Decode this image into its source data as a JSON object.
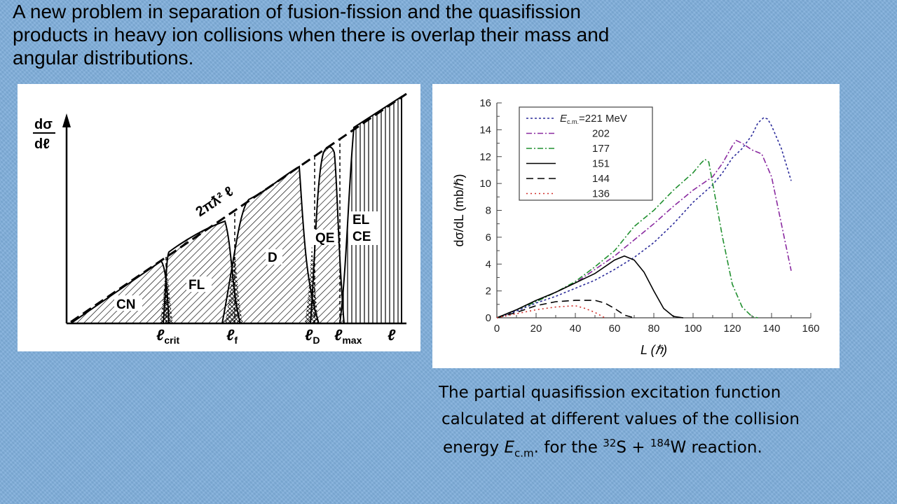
{
  "slide": {
    "title_lines": [
      "A new problem in separation of fusion-fission and the quasifission",
      "products in heavy ion collisions when there is overlap their mass and",
      "angular distributions."
    ]
  },
  "left_figure": {
    "y_label_top": "dσ",
    "y_label_bottom": "dℓ",
    "x_axis_symbol": "ℓ",
    "slope_label": "2πƛ² ℓ",
    "regions": [
      "CN",
      "FL",
      "D",
      "QE",
      "EL",
      "CE"
    ],
    "ticks": [
      {
        "main": "ℓ",
        "sub": "crit"
      },
      {
        "main": "ℓ",
        "sub": "f"
      },
      {
        "main": "ℓ",
        "sub": "D"
      },
      {
        "main": "ℓ",
        "sub": "max"
      }
    ]
  },
  "chart_data": {
    "type": "line",
    "title": "",
    "xlabel": "L (ℏ)",
    "ylabel": "dσ/dL (mb/ℏ)",
    "xlim": [
      0,
      160
    ],
    "ylim": [
      0,
      16
    ],
    "xticks": [
      0,
      20,
      40,
      60,
      80,
      100,
      120,
      140,
      160
    ],
    "yticks": [
      0,
      2,
      4,
      6,
      8,
      10,
      12,
      14,
      16
    ],
    "legend_position": "top-left",
    "legend_prefix_symbol": "E",
    "legend_prefix_sub": "c.m.",
    "series": [
      {
        "name": "=221 MeV",
        "color": "#2b2b9a",
        "dash": "3,3",
        "x": [
          0,
          10,
          20,
          30,
          40,
          50,
          60,
          70,
          80,
          90,
          100,
          110,
          115,
          120,
          125,
          130,
          133,
          136,
          138,
          140,
          145,
          150
        ],
        "y": [
          0,
          0.5,
          1.1,
          1.6,
          2.2,
          2.8,
          3.6,
          4.5,
          5.6,
          7.0,
          8.6,
          9.9,
          10.8,
          11.9,
          12.6,
          13.6,
          14.5,
          14.9,
          14.8,
          14.3,
          12.6,
          10.2
        ]
      },
      {
        "name": "202",
        "color": "#8a2aa0",
        "dash": "8,3,2,3",
        "x": [
          0,
          10,
          20,
          30,
          40,
          50,
          60,
          70,
          80,
          90,
          100,
          110,
          115,
          120,
          122,
          125,
          130,
          135,
          140,
          145,
          150
        ],
        "y": [
          0,
          0.6,
          1.2,
          1.9,
          2.6,
          3.6,
          4.6,
          5.8,
          7.0,
          8.3,
          9.5,
          10.5,
          11.5,
          12.8,
          13.2,
          13.0,
          12.5,
          12.2,
          10.5,
          7.0,
          3.5
        ]
      },
      {
        "name": "177",
        "color": "#219030",
        "dash": "8,3,2,3",
        "x": [
          0,
          10,
          20,
          30,
          40,
          50,
          60,
          70,
          80,
          90,
          100,
          104,
          106,
          108,
          110,
          115,
          120,
          125,
          130,
          133
        ],
        "y": [
          0,
          0.6,
          1.2,
          1.9,
          2.7,
          3.8,
          5.0,
          6.8,
          8.0,
          9.5,
          10.8,
          11.5,
          11.8,
          11.6,
          10.0,
          6.0,
          2.5,
          0.8,
          0.1,
          0
        ]
      },
      {
        "name": "151",
        "color": "#000000",
        "dash": "",
        "x": [
          0,
          10,
          20,
          30,
          40,
          50,
          60,
          65,
          70,
          75,
          80,
          85,
          90,
          95
        ],
        "y": [
          0,
          0.6,
          1.3,
          1.9,
          2.6,
          3.3,
          4.3,
          4.6,
          4.3,
          3.4,
          2.0,
          0.7,
          0.1,
          0
        ]
      },
      {
        "name": "144",
        "color": "#000000",
        "dash": "10,6",
        "x": [
          0,
          10,
          20,
          30,
          40,
          50,
          55,
          60,
          65,
          70
        ],
        "y": [
          0,
          0.4,
          0.9,
          1.2,
          1.3,
          1.3,
          1.1,
          0.7,
          0.2,
          0
        ]
      },
      {
        "name": "136",
        "color": "#d0302a",
        "dash": "2,4",
        "x": [
          0,
          10,
          20,
          30,
          40,
          45,
          50,
          55
        ],
        "y": [
          0,
          0.3,
          0.6,
          0.8,
          0.9,
          0.7,
          0.4,
          0
        ]
      }
    ]
  },
  "caption": {
    "line1": "The partial quasifission excitation function",
    "line2": "calculated at different values of the collision",
    "line3_prefix": "energy ",
    "line3_E": "E",
    "line3_E_sub": "c.m",
    "line3_mid": ". for the ",
    "line3_sup1": "32",
    "line3_S": "S + ",
    "line3_sup2": "184",
    "line3_end": "W reaction."
  },
  "colors": {
    "background": "#7faedb",
    "panel": "#ffffff",
    "legend_box": "#444444"
  }
}
